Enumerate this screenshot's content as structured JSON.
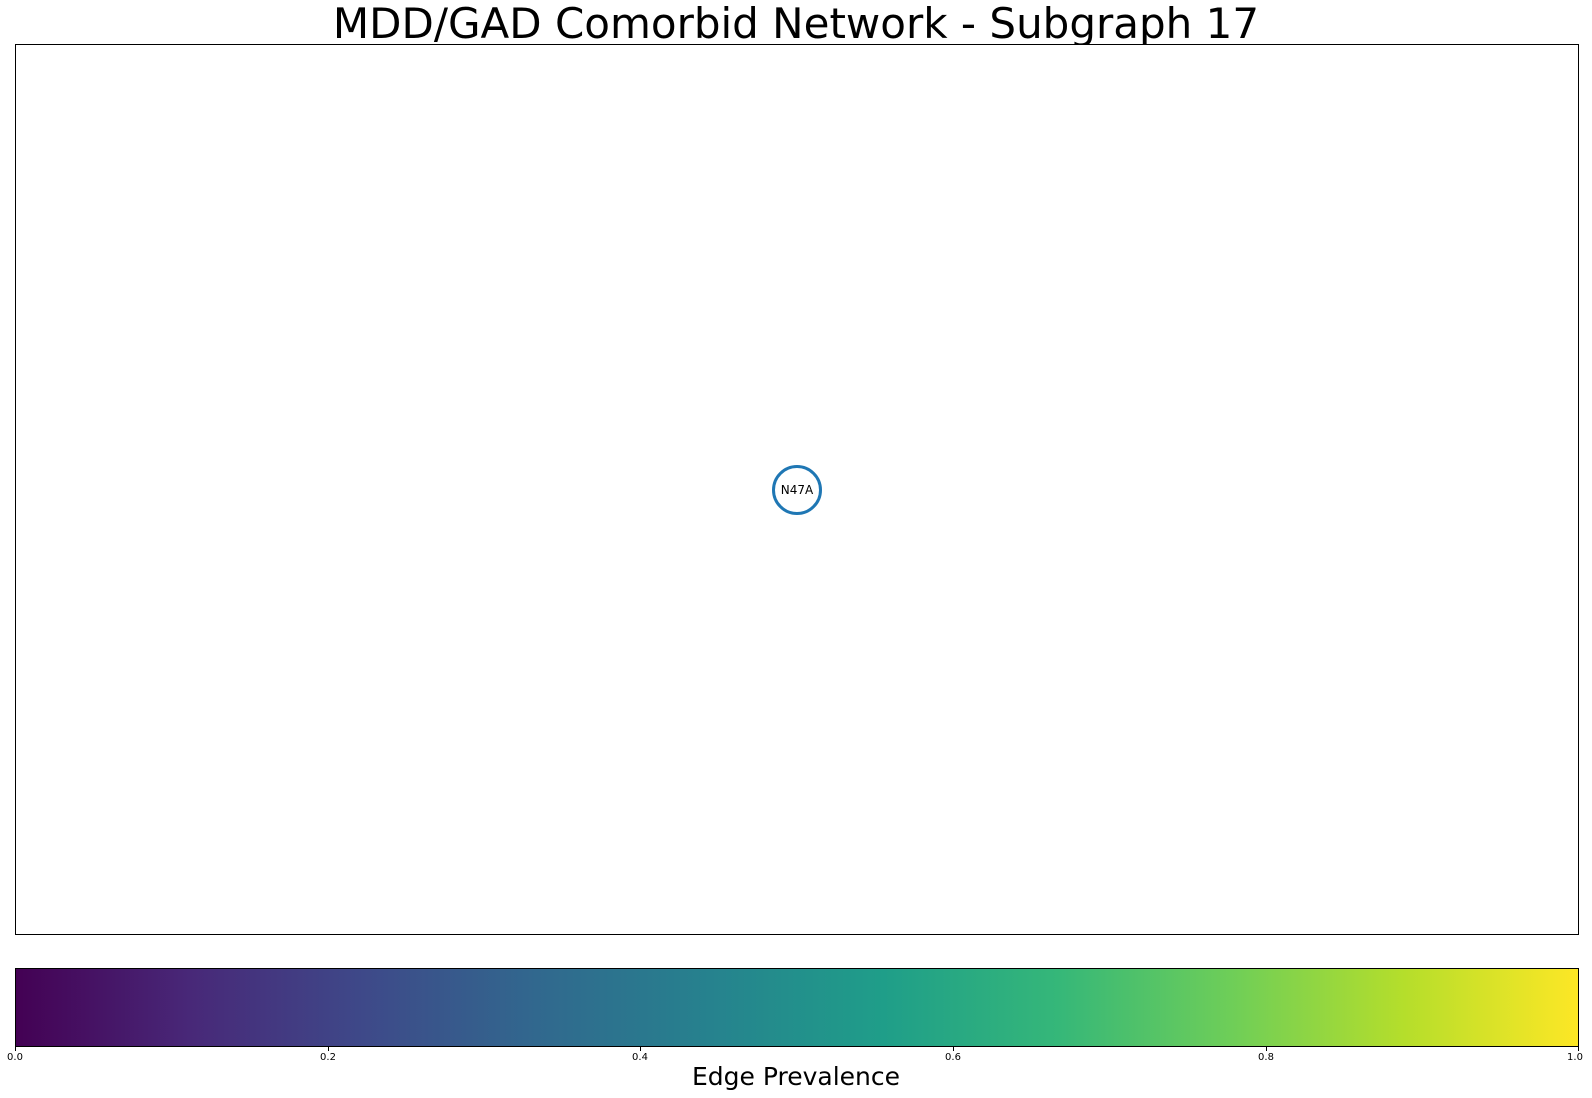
{
  "title": "MDD/GAD Comorbid Network - Subgraph 17",
  "nodes": [
    {
      "id": "N47A",
      "label": "N47A",
      "color": "#1f77b4"
    }
  ],
  "edges": [],
  "colorbar": {
    "label": "Edge Prevalence",
    "colormap": "viridis",
    "range": [
      0.0,
      1.0
    ],
    "ticks": [
      "0.0",
      "0.2",
      "0.4",
      "0.6",
      "0.8",
      "1.0"
    ]
  }
}
